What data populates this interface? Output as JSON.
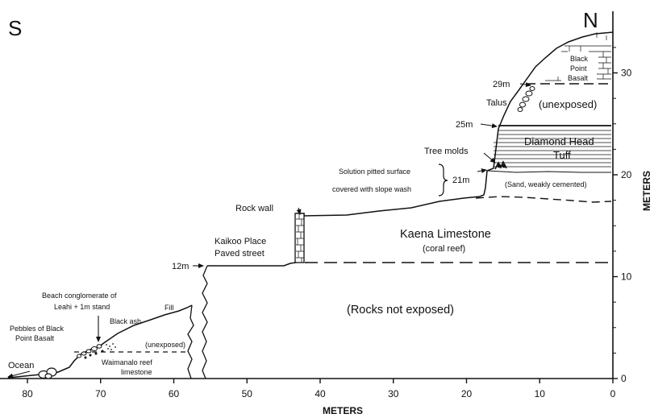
{
  "compass": {
    "south": "S",
    "north": "N"
  },
  "axes": {
    "x_title": "METERS",
    "y_title": "METERS",
    "x_ticks": [
      "80",
      "70",
      "60",
      "50",
      "40",
      "30",
      "20",
      "10",
      "0"
    ],
    "y_ticks": [
      "0",
      "10",
      "20",
      "30"
    ]
  },
  "elevations": {
    "e12": "12m",
    "e21": "21m",
    "e25": "25m",
    "e29": "29m"
  },
  "labels": {
    "ocean": "Ocean",
    "pebbles_1": "Pebbles of Black",
    "pebbles_2": "Point Basalt",
    "beach_1": "Beach conglomerate of",
    "beach_2": "Leahi + 1m stand",
    "black_ash": "Black ash",
    "fill": "Fill",
    "unexposed_low": "(unexposed)",
    "waimanalo_1": "Waimanalo reef",
    "waimanalo_2": "limestone",
    "rocks_not_exposed": "(Rocks not exposed)",
    "kaikoo_1": "Kaikoo Place",
    "kaikoo_2": "Paved street",
    "rock_wall": "Rock wall",
    "kaena_1": "Kaena Limestone",
    "kaena_2": "(coral reef)",
    "solution_1": "Solution pitted surface",
    "solution_2": "covered with slope wash",
    "tree_molds": "Tree molds",
    "sand": "(Sand, weakly cemented)",
    "diamond_1": "Diamond Head",
    "diamond_2": "Tuff",
    "talus": "Talus",
    "unexposed_high": "(unexposed)",
    "basalt_1": "Black",
    "basalt_2": "Point",
    "basalt_3": "Basalt"
  }
}
